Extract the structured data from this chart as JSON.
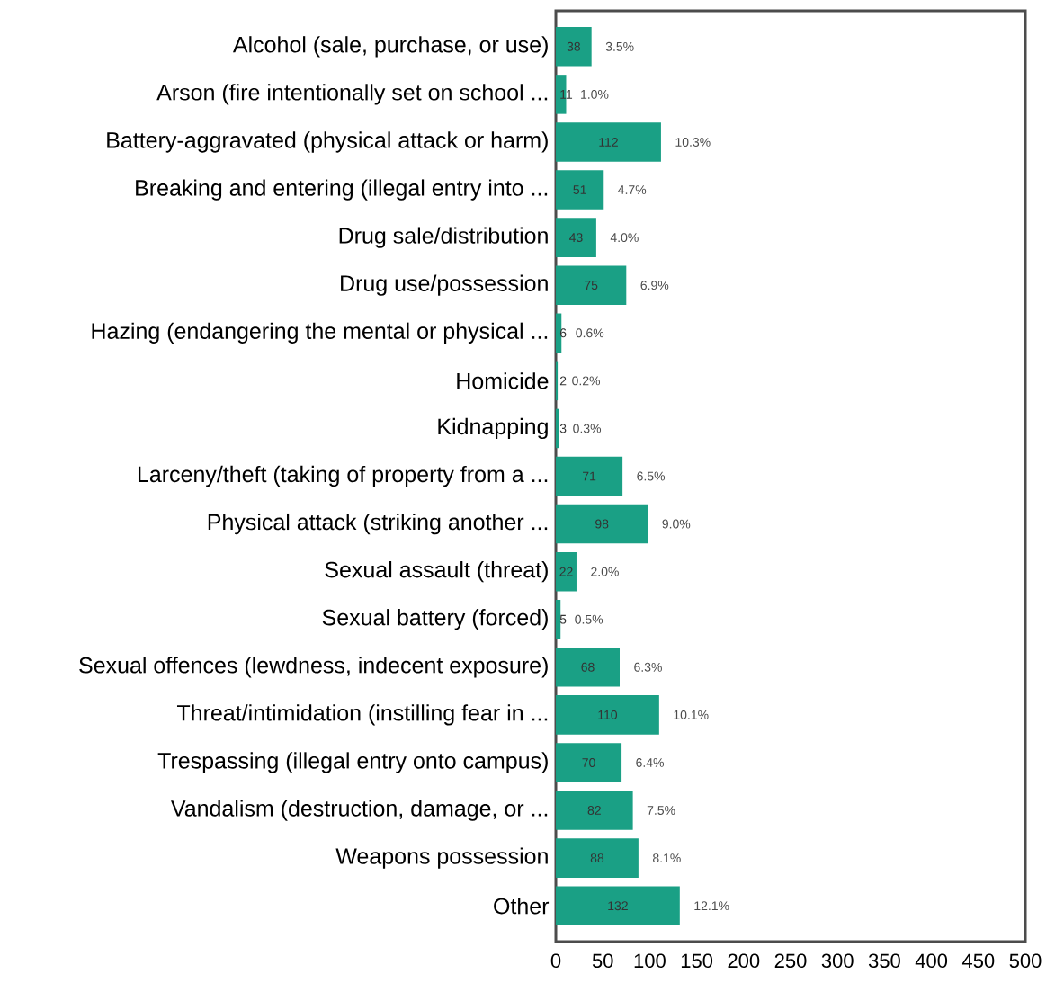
{
  "chart_data": {
    "type": "bar",
    "orientation": "horizontal",
    "color": "#1aa085",
    "data_labels": true,
    "grid": false,
    "categories": [
      "Alcohol (sale, purchase, or use)",
      "Arson (fire intentionally set on school ...",
      "Battery-aggravated (physical attack or harm)",
      "Breaking and entering (illegal entry into ...",
      "Drug sale/distribution",
      "Drug use/possession",
      "Hazing (endangering the mental or physical ...",
      "Homicide",
      "Kidnapping",
      "Larceny/theft (taking of property from a ...",
      "Physical attack (striking another ...",
      "Sexual assault (threat)",
      "Sexual battery (forced)",
      "Sexual offences (lewdness, indecent exposure)",
      "Threat/intimidation (instilling fear in ...",
      "Trespassing (illegal entry onto campus)",
      "Vandalism (destruction, damage, or ...",
      "Weapons possession",
      "Other"
    ],
    "values": [
      38,
      11,
      112,
      51,
      43,
      75,
      6,
      2,
      3,
      71,
      98,
      22,
      5,
      68,
      110,
      70,
      82,
      88,
      132
    ],
    "xlim": [
      0,
      500
    ],
    "xticks": [
      0,
      50,
      100,
      150,
      200,
      250,
      300,
      350,
      400,
      450,
      500
    ],
    "annotations": [
      {
        "text": "3.5%",
        "x": 38,
        "y": "Alcohol (sale, purchase, or use)"
      },
      {
        "text": "1.0%",
        "x": 11,
        "y": "Arson (fire intentionally set on school ..."
      },
      {
        "text": "10.3%",
        "x": 112,
        "y": "Battery-aggravated (physical attack or harm)"
      },
      {
        "text": "4.7%",
        "x": 51,
        "y": "Breaking and entering (illegal entry into ..."
      },
      {
        "text": "4.0%",
        "x": 43,
        "y": "Drug sale/distribution"
      },
      {
        "text": "6.9%",
        "x": 75,
        "y": "Drug use/possession"
      },
      {
        "text": "0.6%",
        "x": 6,
        "y": "Hazing (endangering the mental or physical ..."
      },
      {
        "text": "0.2%",
        "x": 2,
        "y": "Homicide"
      },
      {
        "text": "0.3%",
        "x": 3,
        "y": "Kidnapping"
      },
      {
        "text": "6.5%",
        "x": 71,
        "y": "Larceny/theft (taking of property from a ..."
      },
      {
        "text": "9.0%",
        "x": 98,
        "y": "Physical attack (striking another ..."
      },
      {
        "text": "2.0%",
        "x": 22,
        "y": "Sexual assault (threat)"
      },
      {
        "text": "0.5%",
        "x": 5,
        "y": "Sexual battery (forced)"
      },
      {
        "text": "6.3%",
        "x": 68,
        "y": "Sexual offences (lewdness, indecent exposure)"
      },
      {
        "text": "10.1%",
        "x": 110,
        "y": "Threat/intimidation (instilling fear in ..."
      },
      {
        "text": "6.4%",
        "x": 70,
        "y": "Trespassing (illegal entry onto campus)"
      },
      {
        "text": "7.5%",
        "x": 82,
        "y": "Vandalism (destruction, damage, or ..."
      },
      {
        "text": "8.1%",
        "x": 88,
        "y": "Weapons possession"
      },
      {
        "text": "12.1%",
        "x": 132,
        "y": "Other"
      }
    ]
  }
}
